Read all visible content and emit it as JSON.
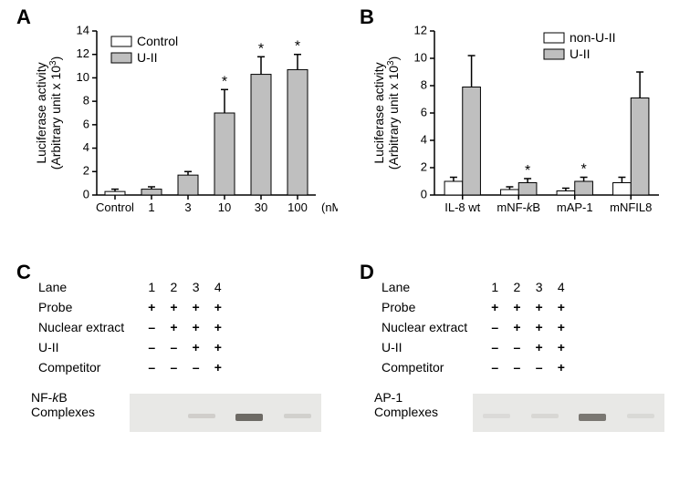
{
  "panelLabels": {
    "A": "A",
    "B": "B",
    "C": "C",
    "D": "D"
  },
  "chartA": {
    "type": "bar",
    "ylabel1": "Luciferase activity",
    "ylabel2": "(Arbitrary unit x 10",
    "ylabel2_sup": "3",
    "ylabel2_close": ")",
    "ylim": [
      0,
      14
    ],
    "ytick_step": 2,
    "yticks": [
      0,
      2,
      4,
      6,
      8,
      10,
      12,
      14
    ],
    "legend": [
      {
        "label": "Control",
        "fill": "#ffffff"
      },
      {
        "label": "U-II",
        "fill": "#bfbfbf"
      }
    ],
    "categories": [
      "Control",
      "1",
      "3",
      "10",
      "30",
      "100"
    ],
    "xunit": "(nM)",
    "control_values": [
      0.3,
      null,
      null,
      null,
      null,
      null
    ],
    "uii_values": [
      null,
      0.5,
      1.7,
      7.0,
      10.3,
      10.7
    ],
    "errs": [
      0.2,
      0.2,
      0.3,
      2.0,
      1.5,
      1.3
    ],
    "stars": [
      false,
      false,
      false,
      true,
      true,
      true
    ],
    "bar_colors": {
      "control": "#ffffff",
      "uii": "#bfbfbf"
    },
    "stroke": "#000000",
    "bg": "#ffffff",
    "label_fontsize": 14,
    "tick_fontsize": 13
  },
  "chartB": {
    "type": "grouped_bar",
    "ylabel1": "Luciferase activity",
    "ylabel2": "(Arbitrary unit x 10",
    "ylabel2_sup": "3",
    "ylabel2_close": ")",
    "ylim": [
      0,
      12
    ],
    "ytick_step": 2,
    "yticks": [
      0,
      2,
      4,
      6,
      8,
      10,
      12
    ],
    "legend": [
      {
        "label": "non-U-II",
        "fill": "#ffffff"
      },
      {
        "label": "U-II",
        "fill": "#bfbfbf"
      }
    ],
    "categories": [
      "IL-8 wt",
      "mNF-kB",
      "mAP-1",
      "mNFIL8"
    ],
    "category_italic_k": [
      false,
      true,
      false,
      false
    ],
    "pairs": [
      {
        "non": 1.0,
        "uii": 7.9,
        "err_non": 0.3,
        "err_uii": 2.3,
        "star": false
      },
      {
        "non": 0.4,
        "uii": 0.9,
        "err_non": 0.2,
        "err_uii": 0.3,
        "star": true
      },
      {
        "non": 0.3,
        "uii": 1.0,
        "err_non": 0.2,
        "err_uii": 0.3,
        "star": true
      },
      {
        "non": 0.9,
        "uii": 7.1,
        "err_non": 0.4,
        "err_uii": 1.9,
        "star": false
      }
    ],
    "bar_colors": {
      "non": "#ffffff",
      "uii": "#bfbfbf"
    },
    "stroke": "#000000",
    "bg": "#ffffff",
    "label_fontsize": 14,
    "tick_fontsize": 13
  },
  "gelC": {
    "rows": [
      "Lane",
      "Probe",
      "Nuclear extract",
      "U-II",
      "Competitor"
    ],
    "cols": [
      "1",
      "2",
      "3",
      "4"
    ],
    "probe": [
      "+",
      "+",
      "+",
      "+"
    ],
    "nuclear": [
      "–",
      "+",
      "+",
      "+"
    ],
    "uii": [
      "–",
      "–",
      "+",
      "+"
    ],
    "competitor": [
      "–",
      "–",
      "–",
      "+"
    ],
    "complex_label1": "NF-",
    "complex_label_italic": "k",
    "complex_label2": "B",
    "complex_label_line2": "Complexes",
    "gel_bg": "#e8e8e6",
    "band_color_faint": "#b8b6b2",
    "band_color_strong": "#6d6a65",
    "bands": [
      {
        "lane": 1,
        "intensity": 0
      },
      {
        "lane": 2,
        "intensity": 0.35
      },
      {
        "lane": 3,
        "intensity": 1.0
      },
      {
        "lane": 4,
        "intensity": 0.3
      }
    ]
  },
  "gelD": {
    "rows": [
      "Lane",
      "Probe",
      "Nuclear extract",
      "U-II",
      "Competitor"
    ],
    "cols": [
      "1",
      "2",
      "3",
      "4"
    ],
    "probe": [
      "+",
      "+",
      "+",
      "+"
    ],
    "nuclear": [
      "–",
      "+",
      "+",
      "+"
    ],
    "uii": [
      "–",
      "–",
      "+",
      "+"
    ],
    "competitor": [
      "–",
      "–",
      "–",
      "+"
    ],
    "complex_label": "AP-1",
    "complex_label_line2": "Complexes",
    "gel_bg": "#e8e8e6",
    "band_color_faint": "#c4c2be",
    "band_color_strong": "#7a7772",
    "bands": [
      {
        "lane": 1,
        "intensity": 0.15
      },
      {
        "lane": 2,
        "intensity": 0.25
      },
      {
        "lane": 3,
        "intensity": 1.0
      },
      {
        "lane": 4,
        "intensity": 0.2
      }
    ]
  }
}
